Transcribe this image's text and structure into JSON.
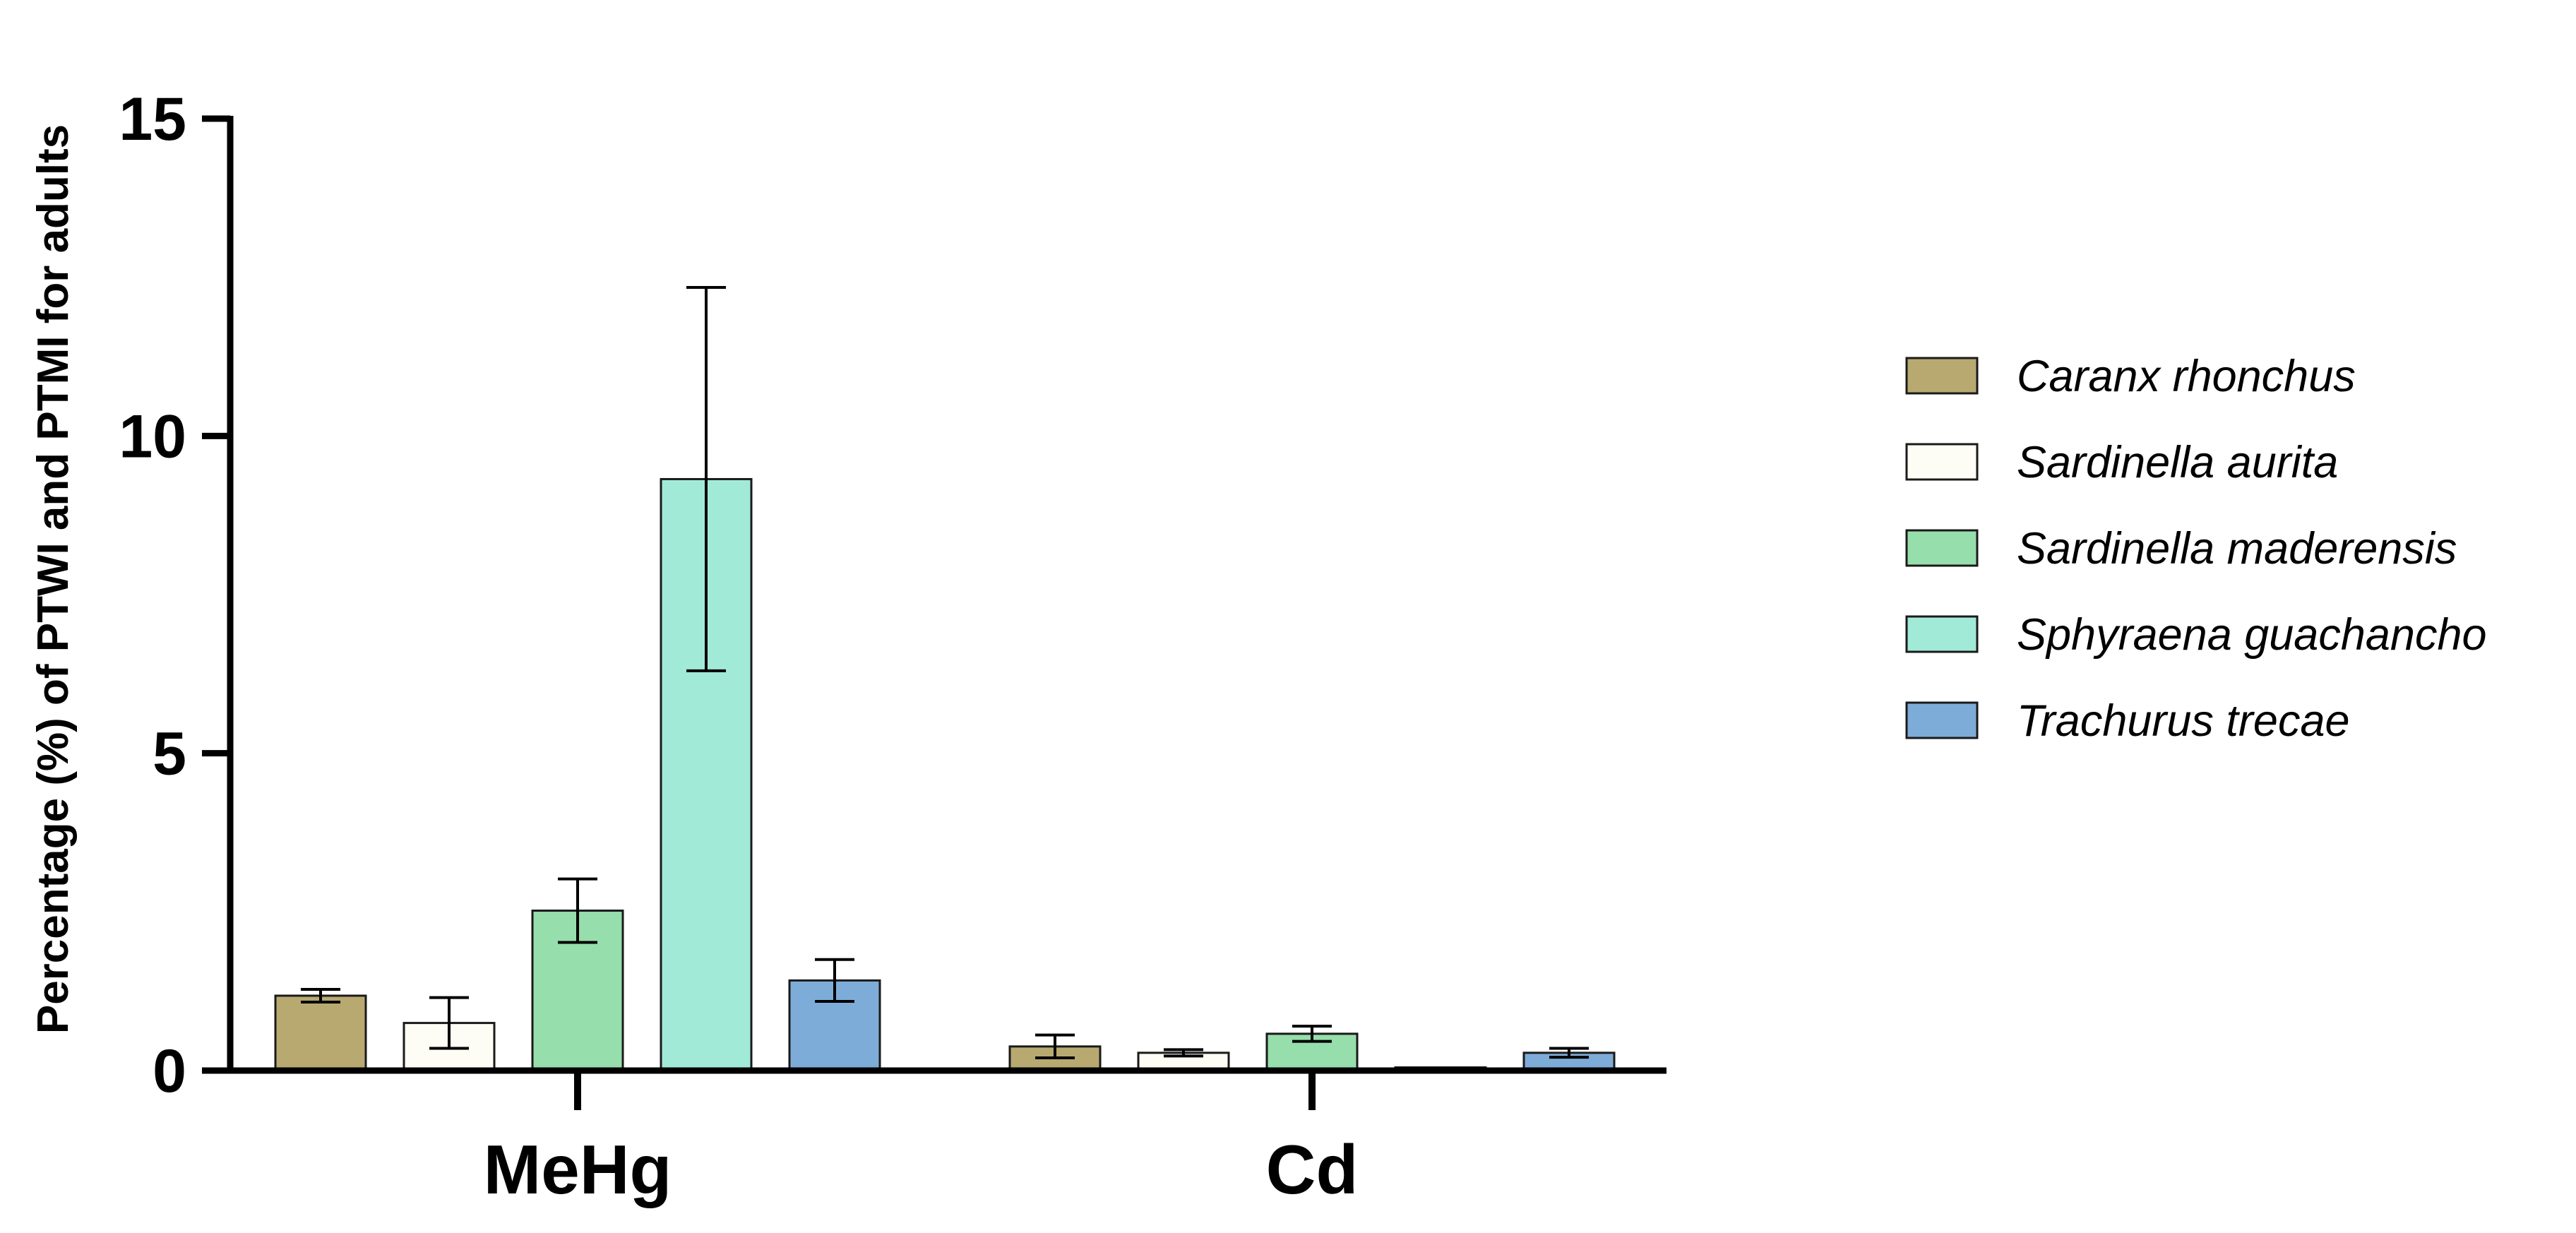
{
  "chart_data": {
    "type": "bar",
    "title": "",
    "xlabel": "",
    "ylabel": "Percentage (%) of PTWI and PTMI for adults",
    "ylim": [
      0,
      15
    ],
    "yticks": [
      0,
      5,
      10,
      15
    ],
    "grid": false,
    "legend_position": "right",
    "categories": [
      "MeHg",
      "Cd"
    ],
    "series": [
      {
        "name": "Caranx rhonchus",
        "color": "#b8a970",
        "values": [
          1.18,
          0.38
        ],
        "errors": [
          0.1,
          0.18
        ]
      },
      {
        "name": "Sardinella aurita",
        "color": "#fdfdf5",
        "values": [
          0.75,
          0.28
        ],
        "errors": [
          0.4,
          0.05
        ]
      },
      {
        "name": "Sardinella maderensis",
        "color": "#96deab",
        "values": [
          2.52,
          0.58
        ],
        "errors": [
          0.5,
          0.12
        ]
      },
      {
        "name": "Sphyraena guachancho",
        "color": "#a2ead8",
        "values": [
          9.32,
          0.05
        ],
        "errors": [
          3.02,
          0.01
        ]
      },
      {
        "name": "Trachurus trecae",
        "color": "#7eacd8",
        "values": [
          1.42,
          0.28
        ],
        "errors": [
          0.33,
          0.07
        ]
      }
    ]
  }
}
